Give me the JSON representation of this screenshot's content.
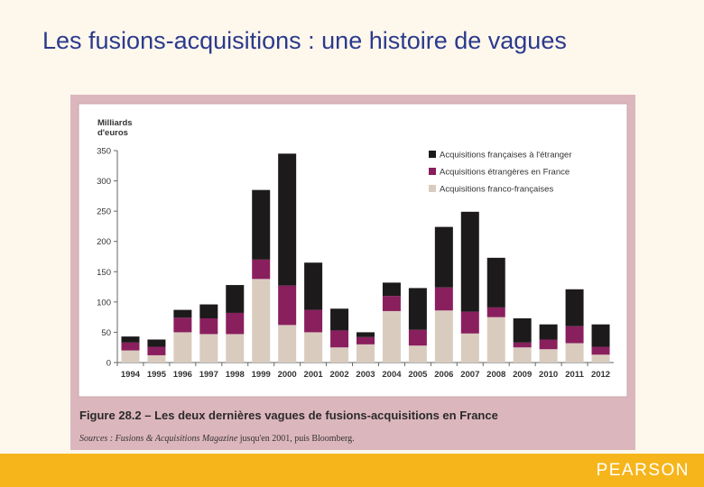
{
  "slide": {
    "title": "Les fusions-acquisitions : une histoire de vagues",
    "footer_logo": "PEARSON"
  },
  "figure": {
    "number": "Figure 28.2",
    "caption": " – Les deux dernières vagues de fusions-acquisitions en France",
    "source_label": "Sources : Fusions & Acquisitions Magazine",
    "source_rest": " jusqu'en 2001, puis Bloomberg."
  },
  "colors": {
    "franco": "#d9ccbf",
    "etrangeres": "#8a1f5e",
    "etranger": "#1d1a1b",
    "frame": "#dcb6bd",
    "plot_bg": "#ffffff",
    "slide_bg": "#fdf7ec",
    "footer": "#f6b51b",
    "title": "#2b3a8c"
  },
  "chart_data": {
    "type": "bar",
    "stacked": true,
    "ylabel": "Milliards d'euros",
    "ylim": [
      0,
      350
    ],
    "yticks": [
      0,
      50,
      100,
      150,
      200,
      250,
      300,
      350
    ],
    "grid": false,
    "legend_position": "top-right",
    "categories": [
      "1994",
      "1995",
      "1996",
      "1997",
      "1998",
      "1999",
      "2000",
      "2001",
      "2002",
      "2003",
      "2004",
      "2005",
      "2006",
      "2007",
      "2008",
      "2009",
      "2010",
      "2011",
      "2012"
    ],
    "series": [
      {
        "name": "Acquisitions franco-françaises",
        "color_key": "franco",
        "values": [
          20,
          12,
          50,
          47,
          47,
          138,
          62,
          50,
          25,
          30,
          85,
          28,
          86,
          48,
          75,
          25,
          22,
          32,
          13
        ]
      },
      {
        "name": "Acquisitions étrangères en France",
        "color_key": "etrangeres",
        "values": [
          13,
          14,
          24,
          26,
          35,
          32,
          65,
          37,
          28,
          12,
          25,
          26,
          38,
          36,
          16,
          8,
          16,
          28,
          13
        ]
      },
      {
        "name": "Acquisitions françaises à l'étranger",
        "color_key": "etranger",
        "values": [
          10,
          12,
          13,
          23,
          46,
          115,
          218,
          78,
          36,
          8,
          22,
          69,
          100,
          165,
          82,
          40,
          25,
          61,
          37
        ]
      }
    ],
    "legend_order": [
      "Acquisitions françaises à l'étranger",
      "Acquisitions étrangères en France",
      "Acquisitions franco-françaises"
    ]
  }
}
